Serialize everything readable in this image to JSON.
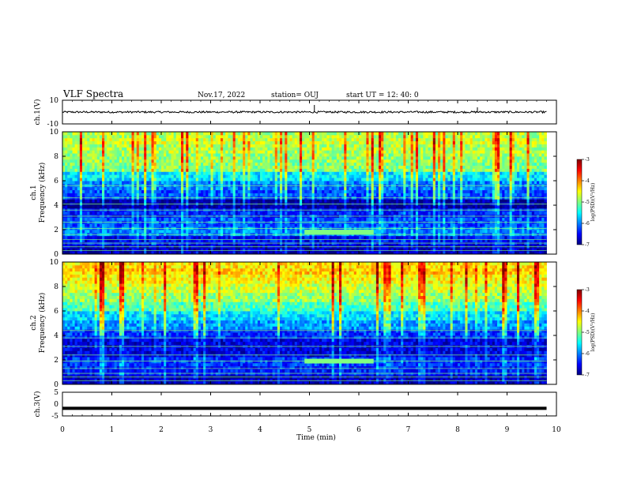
{
  "header": {
    "title": "VLF Spectra",
    "date": "Nov.17, 2022",
    "station": "station= OUJ",
    "start_ut": "start  UT  =   12: 40: 0"
  },
  "colorbar": {
    "label": "log(PSD)(V²/Hz)",
    "ticks": [
      "-3",
      "-4",
      "-5",
      "-6",
      "-7"
    ]
  },
  "colors": {
    "spectrum_min": "#00007f",
    "spectrum_low": "#0000ff",
    "spectrum_mid": "#00ffff",
    "spectrum_high": "#ffff00",
    "spectrum_max": "#7f0000"
  },
  "chart_data": [
    {
      "type": "line",
      "panel": "ch1-waveform",
      "ylabel": "ch.1(V)",
      "ylim": [
        -10,
        10
      ],
      "yticks": [
        "10",
        "-10"
      ],
      "x": [
        0,
        1,
        2,
        3,
        4,
        5,
        6,
        7,
        8,
        9,
        9.8
      ],
      "series": [
        {
          "values": [
            0,
            0,
            0,
            0,
            0,
            0,
            0,
            0,
            0,
            0,
            0
          ]
        }
      ],
      "spikes": [
        {
          "x": 5.1,
          "y": 6
        },
        {
          "x": 8.4,
          "y": 4
        }
      ]
    },
    {
      "type": "heatmap",
      "panel": "ch1-spectrogram",
      "ylabel": "ch.1\nFrequency (kHz)",
      "xlim": [
        0,
        10
      ],
      "ylim": [
        0,
        10
      ],
      "yticks": [
        "0",
        "2",
        "4",
        "6",
        "8",
        "10"
      ],
      "data_xmax": 9.8,
      "colorbar_range": [
        -7,
        -3
      ],
      "background_log_psd": [
        {
          "f": 0.25,
          "v": -6.8
        },
        {
          "f": 1.0,
          "v": -6.5
        },
        {
          "f": 1.75,
          "v": -6.0
        },
        {
          "f": 2.5,
          "v": -6.2
        },
        {
          "f": 3.25,
          "v": -6.4
        },
        {
          "f": 4.0,
          "v": -6.9
        },
        {
          "f": 4.75,
          "v": -6.2
        },
        {
          "f": 5.5,
          "v": -6.0
        },
        {
          "f": 6.25,
          "v": -5.6
        },
        {
          "f": 7.0,
          "v": -5.0
        },
        {
          "f": 7.75,
          "v": -4.9
        },
        {
          "f": 8.5,
          "v": -4.8
        },
        {
          "f": 9.25,
          "v": -4.7
        },
        {
          "f": 9.9,
          "v": -4.8
        }
      ],
      "narrowband_lines_khz": [
        0.3,
        0.6,
        0.9,
        1.2,
        1.6,
        2.1,
        2.6,
        3.1,
        3.6,
        4.1,
        4.6,
        5.6
      ],
      "features": [
        {
          "label": "",
          "t_start": 4.9,
          "t_end": 6.3,
          "f": 1.8,
          "v": -5.0
        }
      ]
    },
    {
      "type": "heatmap",
      "panel": "ch2-spectrogram",
      "ylabel": "ch.2\nFrequency (kHz)",
      "xlim": [
        0,
        10
      ],
      "ylim": [
        0,
        10
      ],
      "yticks": [
        "0",
        "2",
        "4",
        "6",
        "8",
        "10"
      ],
      "data_xmax": 9.8,
      "colorbar_range": [
        -7,
        -3
      ],
      "background_log_psd": [
        {
          "f": 0.25,
          "v": -6.8
        },
        {
          "f": 1.0,
          "v": -6.4
        },
        {
          "f": 1.75,
          "v": -6.3
        },
        {
          "f": 2.5,
          "v": -6.6
        },
        {
          "f": 3.25,
          "v": -6.6
        },
        {
          "f": 4.0,
          "v": -6.3
        },
        {
          "f": 4.75,
          "v": -5.9
        },
        {
          "f": 5.5,
          "v": -5.6
        },
        {
          "f": 6.25,
          "v": -5.2
        },
        {
          "f": 7.0,
          "v": -4.9
        },
        {
          "f": 7.75,
          "v": -4.7
        },
        {
          "f": 8.5,
          "v": -4.5
        },
        {
          "f": 9.25,
          "v": -4.3
        },
        {
          "f": 9.9,
          "v": -4.4
        }
      ],
      "narrowband_lines_khz": [
        0.3,
        0.6,
        0.9,
        1.3,
        1.9,
        2.4,
        3.1,
        3.8,
        4.4
      ],
      "features": [
        {
          "label": "",
          "t_start": 4.9,
          "t_end": 6.3,
          "f": 1.9,
          "v": -5.0
        }
      ]
    },
    {
      "type": "line",
      "panel": "ch3-waveform",
      "ylabel": "ch.3(V)",
      "ylim": [
        -5,
        5
      ],
      "yticks": [
        "5",
        "0",
        "-5"
      ],
      "x": [
        0,
        9.8
      ],
      "series": [
        {
          "values": [
            -1.8,
            -1.8
          ]
        }
      ]
    }
  ],
  "xaxis": {
    "label": "Time  (min)",
    "ticks": [
      "0",
      "1",
      "2",
      "3",
      "4",
      "5",
      "6",
      "7",
      "8",
      "9",
      "10"
    ],
    "xlim": [
      0,
      10
    ]
  }
}
